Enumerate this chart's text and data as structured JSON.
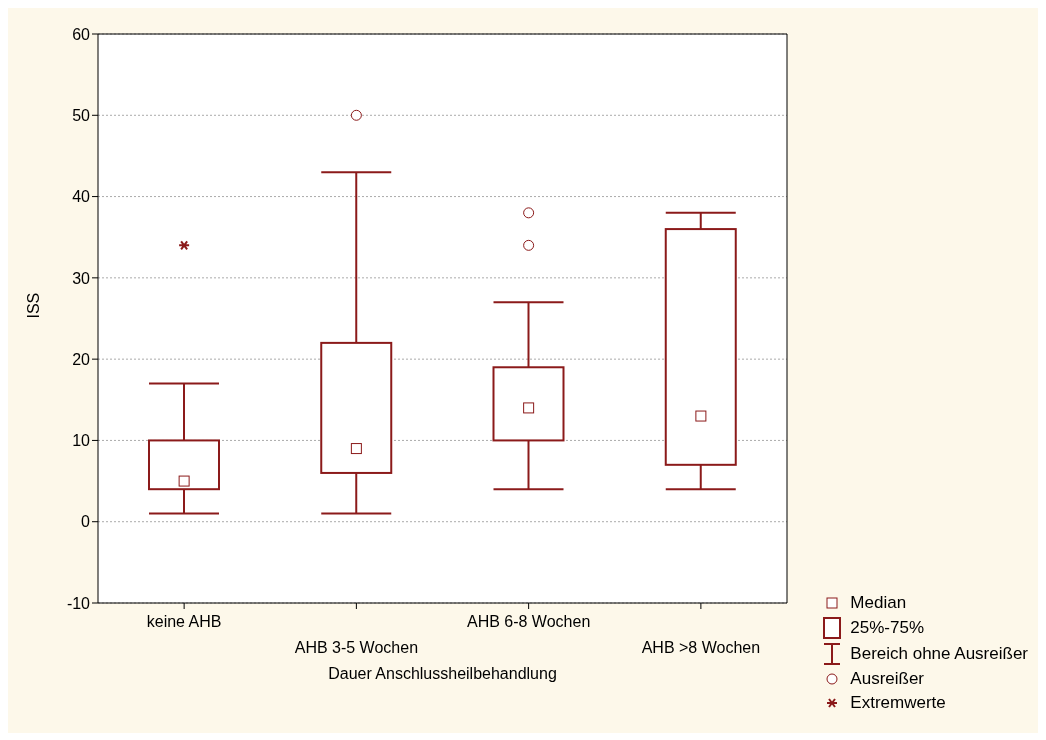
{
  "chart_data": {
    "type": "box",
    "xlabel": "Dauer Anschlussheilbehandlung",
    "ylabel": "ISS",
    "categories": [
      "keine AHB",
      "AHB 3-5 Wochen",
      "AHB 6-8 Wochen",
      "AHB >8 Wochen"
    ],
    "ylim": [
      -10,
      60
    ],
    "yticks": [
      -10,
      0,
      10,
      20,
      30,
      40,
      50,
      60
    ],
    "grid": "y",
    "legend": "bottom right",
    "annotations": [
      "Median",
      "25%-75%",
      "Bereich ohne Ausreißer",
      "Ausreißer"
    ],
    "series": [
      {
        "color": "#8b1a1a",
        "boxes": [
          {
            "low": 1,
            "q1": 4,
            "median": 5,
            "q3": 10,
            "high": 17
          },
          {
            "low": 1,
            "q1": 6,
            "median": 9,
            "q3": 22,
            "high": 43,
            "outliers": [
              50
            ]
          },
          {
            "low": 4,
            "q1": 10,
            "median": 14,
            "q3": 19,
            "high": 27,
            "outliers": [
              34,
              38
            ]
          },
          {
            "low": 4,
            "q1": 7,
            "median": 13,
            "q3": 36,
            "high": 38
          }
        ]
      },
      {
        "type": "scatter",
        "name": "Extremwerte",
        "color": "#8b1a1a",
        "marker": "cross",
        "x": [
          "keine AHB"
        ],
        "values": [
          34
        ]
      }
    ]
  }
}
